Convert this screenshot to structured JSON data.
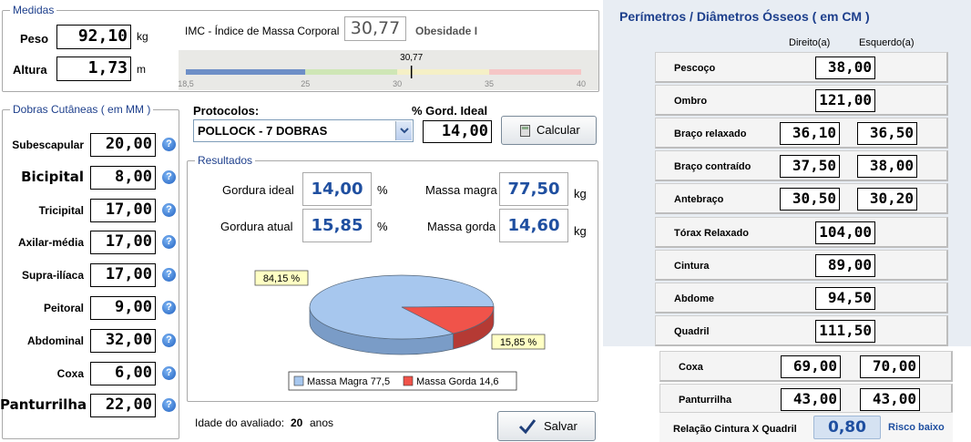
{
  "medidas": {
    "title": "Medidas",
    "peso_label": "Peso",
    "peso_value": "92,10",
    "peso_unit": "kg",
    "altura_label": "Altura",
    "altura_value": "1,73",
    "altura_unit": "m",
    "imc_label": "IMC - Índice de Massa Corporal",
    "imc_value": "30,77",
    "imc_class": "Obesidade I",
    "imc_gauge": {
      "value": 30.77,
      "value_label": "30,77",
      "min": 18.5,
      "max": 40,
      "ticks": [
        "18,5",
        "25",
        "30",
        "35",
        "40"
      ],
      "segments": [
        {
          "from": 18.5,
          "to": 25,
          "color": "#6e8fc7"
        },
        {
          "from": 25,
          "to": 30,
          "color": "#cfe6b6"
        },
        {
          "from": 30,
          "to": 35,
          "color": "#f5f0c6"
        },
        {
          "from": 35,
          "to": 40,
          "color": "#f5c6c6"
        }
      ]
    }
  },
  "dobras": {
    "title": "Dobras Cutâneas  ( em MM )",
    "items": [
      {
        "label": "Subescapular",
        "value": "20,00"
      },
      {
        "label": "Bicipital",
        "value": "8,00"
      },
      {
        "label": "Tricipital",
        "value": "17,00"
      },
      {
        "label": "Axilar-média",
        "value": "17,00"
      },
      {
        "label": "Supra-ilíaca",
        "value": "17,00"
      },
      {
        "label": "Peitoral",
        "value": "9,00"
      },
      {
        "label": "Abdominal",
        "value": "32,00"
      },
      {
        "label": "Coxa",
        "value": "6,00"
      },
      {
        "label": "Panturrilha",
        "value": "22,00"
      }
    ],
    "help_glyph": "?"
  },
  "protocolos": {
    "label": "Protocolos:",
    "selected": "POLLOCK - 7 DOBRAS",
    "gord_ideal_label": "% Gord. Ideal",
    "gord_ideal_value": "14,00",
    "calcular_label": "Calcular"
  },
  "resultados": {
    "title": "Resultados",
    "gordura_ideal_label": "Gordura ideal",
    "gordura_ideal_value": "14,00",
    "gordura_ideal_unit": "%",
    "gordura_atual_label": "Gordura atual",
    "gordura_atual_value": "15,85",
    "gordura_atual_unit": "%",
    "massa_magra_label": "Massa magra",
    "massa_magra_value": "77,50",
    "massa_magra_unit": "kg",
    "massa_gorda_label": "Massa gorda",
    "massa_gorda_value": "14,60",
    "massa_gorda_unit": "kg"
  },
  "chart_data": {
    "type": "pie",
    "slices": [
      {
        "name": "Massa Magra 77,5",
        "value": 84.15,
        "label": "84,15 %",
        "color": "#a7c7ee"
      },
      {
        "name": "Massa Gorda 14,6",
        "value": 15.85,
        "label": "15,85 %",
        "color": "#f0534a"
      }
    ],
    "legend_placement": "bottom"
  },
  "idade": {
    "label": "Idade do avaliado:",
    "value": "20",
    "unit": "anos"
  },
  "salvar_label": "Salvar",
  "perimetros": {
    "title": "Perímetros / Diâmetros Ósseos ( em CM )",
    "col_direito": "Direito(a)",
    "col_esquerdo": "Esquerdo(a)",
    "rows": [
      {
        "label": "Pescoço",
        "single": "38,00"
      },
      {
        "label": "Ombro",
        "single": "121,00"
      },
      {
        "label": "Braço relaxado",
        "dir": "36,10",
        "esq": "36,50"
      },
      {
        "label": "Braço contraído",
        "dir": "37,50",
        "esq": "38,00"
      },
      {
        "label": "Antebraço",
        "dir": "30,50",
        "esq": "30,20"
      },
      {
        "label": "Tórax Relaxado",
        "single": "104,00"
      },
      {
        "label": "Cintura",
        "single": "89,00"
      },
      {
        "label": "Abdome",
        "single": "94,50"
      },
      {
        "label": "Quadril",
        "single": "111,50"
      },
      {
        "label": "Coxa",
        "dir": "69,00",
        "esq": "70,00"
      },
      {
        "label": "Panturrilha",
        "dir": "43,00",
        "esq": "43,00"
      }
    ],
    "relacao_label": "Relação Cintura X Quadril",
    "relacao_value": "0,80",
    "relacao_risk": "Risco baixo"
  }
}
